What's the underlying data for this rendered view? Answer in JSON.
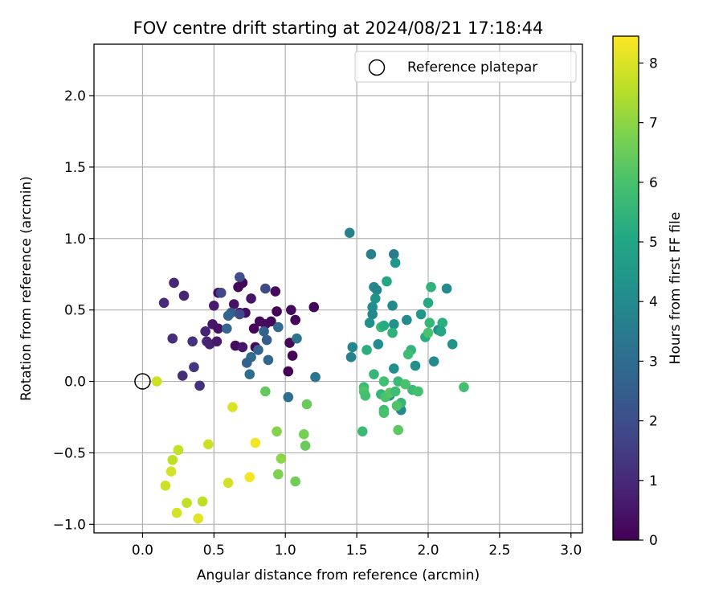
{
  "chart_data": {
    "type": "scatter",
    "title": "FOV centre drift starting at 2024/08/21 17:18:44",
    "xlabel": "Angular distance from reference (arcmin)",
    "ylabel": "Rotation from reference (arcmin)",
    "xlim": [
      -0.34,
      3.08
    ],
    "ylim": [
      -1.06,
      2.36
    ],
    "xticks": [
      0.0,
      0.5,
      1.0,
      1.5,
      2.0,
      2.5,
      3.0
    ],
    "xtick_labels": [
      "0.0",
      "0.5",
      "1.0",
      "1.5",
      "2.0",
      "2.5",
      "3.0"
    ],
    "yticks": [
      -1.0,
      -0.5,
      0.0,
      0.5,
      1.0,
      1.5,
      2.0
    ],
    "ytick_labels": [
      "−1.0",
      "−0.5",
      "0.0",
      "0.5",
      "1.0",
      "1.5",
      "2.0"
    ],
    "grid": true,
    "legend": {
      "placement": "top-right",
      "entries": [
        "Reference platepar"
      ]
    },
    "reference_point": {
      "x": 0.0,
      "y": 0.0
    },
    "colorbar": {
      "label": "Hours from first FF file",
      "range": [
        0,
        8.45
      ],
      "ticks": [
        0,
        1,
        2,
        3,
        4,
        5,
        6,
        7,
        8
      ],
      "tick_labels": [
        "0",
        "1",
        "2",
        "3",
        "4",
        "5",
        "6",
        "7",
        "8"
      ],
      "colormap": "viridis"
    },
    "colormap_stops": [
      "#440154",
      "#482475",
      "#414487",
      "#355f8d",
      "#2a788e",
      "#21918c",
      "#22a884",
      "#44bf70",
      "#7ad151",
      "#bddf26",
      "#fde725"
    ],
    "points": [
      {
        "x": 0.53,
        "y": 0.62,
        "c": 0.3
      },
      {
        "x": 0.67,
        "y": 0.66,
        "c": 0.2
      },
      {
        "x": 0.7,
        "y": 0.69,
        "c": 0.1
      },
      {
        "x": 0.93,
        "y": 0.63,
        "c": 0.2
      },
      {
        "x": 0.5,
        "y": 0.53,
        "c": 0.6
      },
      {
        "x": 0.64,
        "y": 0.54,
        "c": 0.4
      },
      {
        "x": 0.68,
        "y": 0.48,
        "c": 0.5
      },
      {
        "x": 0.72,
        "y": 0.48,
        "c": 0.3
      },
      {
        "x": 0.76,
        "y": 0.58,
        "c": 0.5
      },
      {
        "x": 0.94,
        "y": 0.49,
        "c": 0.1
      },
      {
        "x": 1.04,
        "y": 0.5,
        "c": 0.2
      },
      {
        "x": 1.2,
        "y": 0.52,
        "c": 0.1
      },
      {
        "x": 0.82,
        "y": 0.42,
        "c": 0.2
      },
      {
        "x": 0.86,
        "y": 0.4,
        "c": 0.3
      },
      {
        "x": 0.9,
        "y": 0.42,
        "c": 0.2
      },
      {
        "x": 1.07,
        "y": 0.43,
        "c": 0.1
      },
      {
        "x": 0.49,
        "y": 0.4,
        "c": 0.5
      },
      {
        "x": 0.53,
        "y": 0.37,
        "c": 0.4
      },
      {
        "x": 0.78,
        "y": 0.37,
        "c": 0.1
      },
      {
        "x": 0.44,
        "y": 0.35,
        "c": 0.8
      },
      {
        "x": 0.45,
        "y": 0.28,
        "c": 0.9
      },
      {
        "x": 0.47,
        "y": 0.26,
        "c": 0.8
      },
      {
        "x": 0.52,
        "y": 0.28,
        "c": 0.6
      },
      {
        "x": 0.65,
        "y": 0.25,
        "c": 0.3
      },
      {
        "x": 0.7,
        "y": 0.24,
        "c": 0.5
      },
      {
        "x": 0.79,
        "y": 0.24,
        "c": 0.2
      },
      {
        "x": 1.03,
        "y": 0.27,
        "c": 0.1
      },
      {
        "x": 1.05,
        "y": 0.18,
        "c": 0.1
      },
      {
        "x": 1.02,
        "y": 0.07,
        "c": 0.0
      },
      {
        "x": 0.22,
        "y": 0.69,
        "c": 0.9
      },
      {
        "x": 0.29,
        "y": 0.6,
        "c": 0.9
      },
      {
        "x": 0.15,
        "y": 0.55,
        "c": 1.0
      },
      {
        "x": 0.21,
        "y": 0.3,
        "c": 1.1
      },
      {
        "x": 0.35,
        "y": 0.28,
        "c": 1.2
      },
      {
        "x": 0.36,
        "y": 0.1,
        "c": 1.3
      },
      {
        "x": 0.28,
        "y": 0.04,
        "c": 1.1
      },
      {
        "x": 0.4,
        "y": -0.03,
        "c": 1.2
      },
      {
        "x": 0.55,
        "y": 0.62,
        "c": 1.8
      },
      {
        "x": 0.68,
        "y": 0.73,
        "c": 2.0
      },
      {
        "x": 0.86,
        "y": 0.65,
        "c": 1.9
      },
      {
        "x": 0.62,
        "y": 0.48,
        "c": 2.4
      },
      {
        "x": 0.6,
        "y": 0.46,
        "c": 2.7
      },
      {
        "x": 0.68,
        "y": 0.47,
        "c": 1.9
      },
      {
        "x": 0.59,
        "y": 0.37,
        "c": 2.8
      },
      {
        "x": 0.85,
        "y": 0.35,
        "c": 2.6
      },
      {
        "x": 0.95,
        "y": 0.38,
        "c": 2.9
      },
      {
        "x": 0.87,
        "y": 0.29,
        "c": 2.5
      },
      {
        "x": 0.81,
        "y": 0.22,
        "c": 2.7
      },
      {
        "x": 0.76,
        "y": 0.17,
        "c": 2.9
      },
      {
        "x": 0.73,
        "y": 0.13,
        "c": 2.6
      },
      {
        "x": 0.88,
        "y": 0.15,
        "c": 2.8
      },
      {
        "x": 0.75,
        "y": 0.05,
        "c": 3.0
      },
      {
        "x": 1.08,
        "y": 0.3,
        "c": 3.2
      },
      {
        "x": 1.21,
        "y": 0.03,
        "c": 3.3
      },
      {
        "x": 1.02,
        "y": -0.11,
        "c": 3.1
      },
      {
        "x": 1.45,
        "y": 1.04,
        "c": 3.7
      },
      {
        "x": 1.6,
        "y": 0.89,
        "c": 3.6
      },
      {
        "x": 1.76,
        "y": 0.89,
        "c": 3.5
      },
      {
        "x": 1.77,
        "y": 0.83,
        "c": 4.4
      },
      {
        "x": 1.62,
        "y": 0.66,
        "c": 4.0
      },
      {
        "x": 1.64,
        "y": 0.64,
        "c": 3.8
      },
      {
        "x": 1.63,
        "y": 0.58,
        "c": 4.3
      },
      {
        "x": 1.61,
        "y": 0.52,
        "c": 4.1
      },
      {
        "x": 1.61,
        "y": 0.47,
        "c": 3.9
      },
      {
        "x": 1.59,
        "y": 0.41,
        "c": 4.2
      },
      {
        "x": 1.75,
        "y": 0.53,
        "c": 4.0
      },
      {
        "x": 1.76,
        "y": 0.4,
        "c": 4.3
      },
      {
        "x": 1.47,
        "y": 0.24,
        "c": 3.9
      },
      {
        "x": 1.46,
        "y": 0.17,
        "c": 3.7
      },
      {
        "x": 1.65,
        "y": 0.26,
        "c": 4.1
      },
      {
        "x": 1.85,
        "y": 0.43,
        "c": 4.0
      },
      {
        "x": 1.95,
        "y": 0.47,
        "c": 4.5
      },
      {
        "x": 1.91,
        "y": 0.11,
        "c": 4.2
      },
      {
        "x": 2.04,
        "y": 0.14,
        "c": 4.0
      },
      {
        "x": 2.07,
        "y": 0.36,
        "c": 4.2
      },
      {
        "x": 2.13,
        "y": 0.65,
        "c": 4.0
      },
      {
        "x": 2.17,
        "y": 0.26,
        "c": 4.3
      },
      {
        "x": 1.76,
        "y": 0.09,
        "c": 4.2
      },
      {
        "x": 1.81,
        "y": -0.2,
        "c": 4.0
      },
      {
        "x": 1.73,
        "y": -0.1,
        "c": 4.5
      },
      {
        "x": 1.71,
        "y": 0.7,
        "c": 5.0
      },
      {
        "x": 2.02,
        "y": 0.66,
        "c": 5.4
      },
      {
        "x": 2.0,
        "y": 0.55,
        "c": 5.1
      },
      {
        "x": 2.01,
        "y": 0.41,
        "c": 5.6
      },
      {
        "x": 2.1,
        "y": 0.41,
        "c": 5.3
      },
      {
        "x": 2.09,
        "y": 0.35,
        "c": 5.0
      },
      {
        "x": 1.98,
        "y": 0.31,
        "c": 5.2
      },
      {
        "x": 2.0,
        "y": 0.34,
        "c": 6.0
      },
      {
        "x": 1.88,
        "y": 0.22,
        "c": 5.5
      },
      {
        "x": 1.86,
        "y": 0.19,
        "c": 5.8
      },
      {
        "x": 1.75,
        "y": 0.34,
        "c": 5.4
      },
      {
        "x": 1.67,
        "y": 0.38,
        "c": 5.7
      },
      {
        "x": 1.69,
        "y": 0.39,
        "c": 5.2
      },
      {
        "x": 1.57,
        "y": 0.22,
        "c": 5.3
      },
      {
        "x": 1.62,
        "y": 0.05,
        "c": 5.6
      },
      {
        "x": 1.79,
        "y": 0.0,
        "c": 5.7
      },
      {
        "x": 1.69,
        "y": 0.0,
        "c": 5.9
      },
      {
        "x": 1.55,
        "y": -0.04,
        "c": 5.8
      },
      {
        "x": 1.55,
        "y": -0.07,
        "c": 6.1
      },
      {
        "x": 1.56,
        "y": -0.1,
        "c": 5.9
      },
      {
        "x": 1.67,
        "y": -0.09,
        "c": 5.5
      },
      {
        "x": 1.7,
        "y": -0.11,
        "c": 6.0
      },
      {
        "x": 1.73,
        "y": -0.08,
        "c": 6.2
      },
      {
        "x": 1.77,
        "y": -0.07,
        "c": 5.8
      },
      {
        "x": 1.84,
        "y": -0.02,
        "c": 6.0
      },
      {
        "x": 1.89,
        "y": -0.06,
        "c": 5.7
      },
      {
        "x": 1.93,
        "y": -0.07,
        "c": 5.9
      },
      {
        "x": 1.81,
        "y": -0.15,
        "c": 5.6
      },
      {
        "x": 1.78,
        "y": -0.17,
        "c": 6.1
      },
      {
        "x": 1.69,
        "y": -0.2,
        "c": 5.8
      },
      {
        "x": 1.69,
        "y": -0.22,
        "c": 6.0
      },
      {
        "x": 1.54,
        "y": -0.35,
        "c": 5.7
      },
      {
        "x": 1.79,
        "y": -0.34,
        "c": 6.3
      },
      {
        "x": 2.25,
        "y": -0.04,
        "c": 5.9
      },
      {
        "x": 0.86,
        "y": -0.07,
        "c": 6.4
      },
      {
        "x": 1.15,
        "y": -0.16,
        "c": 6.5
      },
      {
        "x": 1.13,
        "y": -0.37,
        "c": 6.7
      },
      {
        "x": 1.14,
        "y": -0.45,
        "c": 6.5
      },
      {
        "x": 0.94,
        "y": -0.35,
        "c": 6.9
      },
      {
        "x": 0.97,
        "y": -0.54,
        "c": 7.0
      },
      {
        "x": 0.95,
        "y": -0.65,
        "c": 6.8
      },
      {
        "x": 1.07,
        "y": -0.7,
        "c": 6.6
      },
      {
        "x": 0.63,
        "y": -0.18,
        "c": 8.0
      },
      {
        "x": 0.79,
        "y": -0.43,
        "c": 8.3
      },
      {
        "x": 0.46,
        "y": -0.44,
        "c": 7.8
      },
      {
        "x": 0.25,
        "y": -0.48,
        "c": 7.7
      },
      {
        "x": 0.21,
        "y": -0.55,
        "c": 7.6
      },
      {
        "x": 0.2,
        "y": -0.63,
        "c": 7.9
      },
      {
        "x": 0.16,
        "y": -0.73,
        "c": 7.8
      },
      {
        "x": 0.31,
        "y": -0.85,
        "c": 7.7
      },
      {
        "x": 0.42,
        "y": -0.84,
        "c": 7.6
      },
      {
        "x": 0.24,
        "y": -0.92,
        "c": 7.9
      },
      {
        "x": 0.39,
        "y": -0.96,
        "c": 8.1
      },
      {
        "x": 0.6,
        "y": -0.71,
        "c": 7.9
      },
      {
        "x": 0.75,
        "y": -0.67,
        "c": 8.3
      },
      {
        "x": 0.1,
        "y": 0.0,
        "c": 7.8
      }
    ]
  }
}
